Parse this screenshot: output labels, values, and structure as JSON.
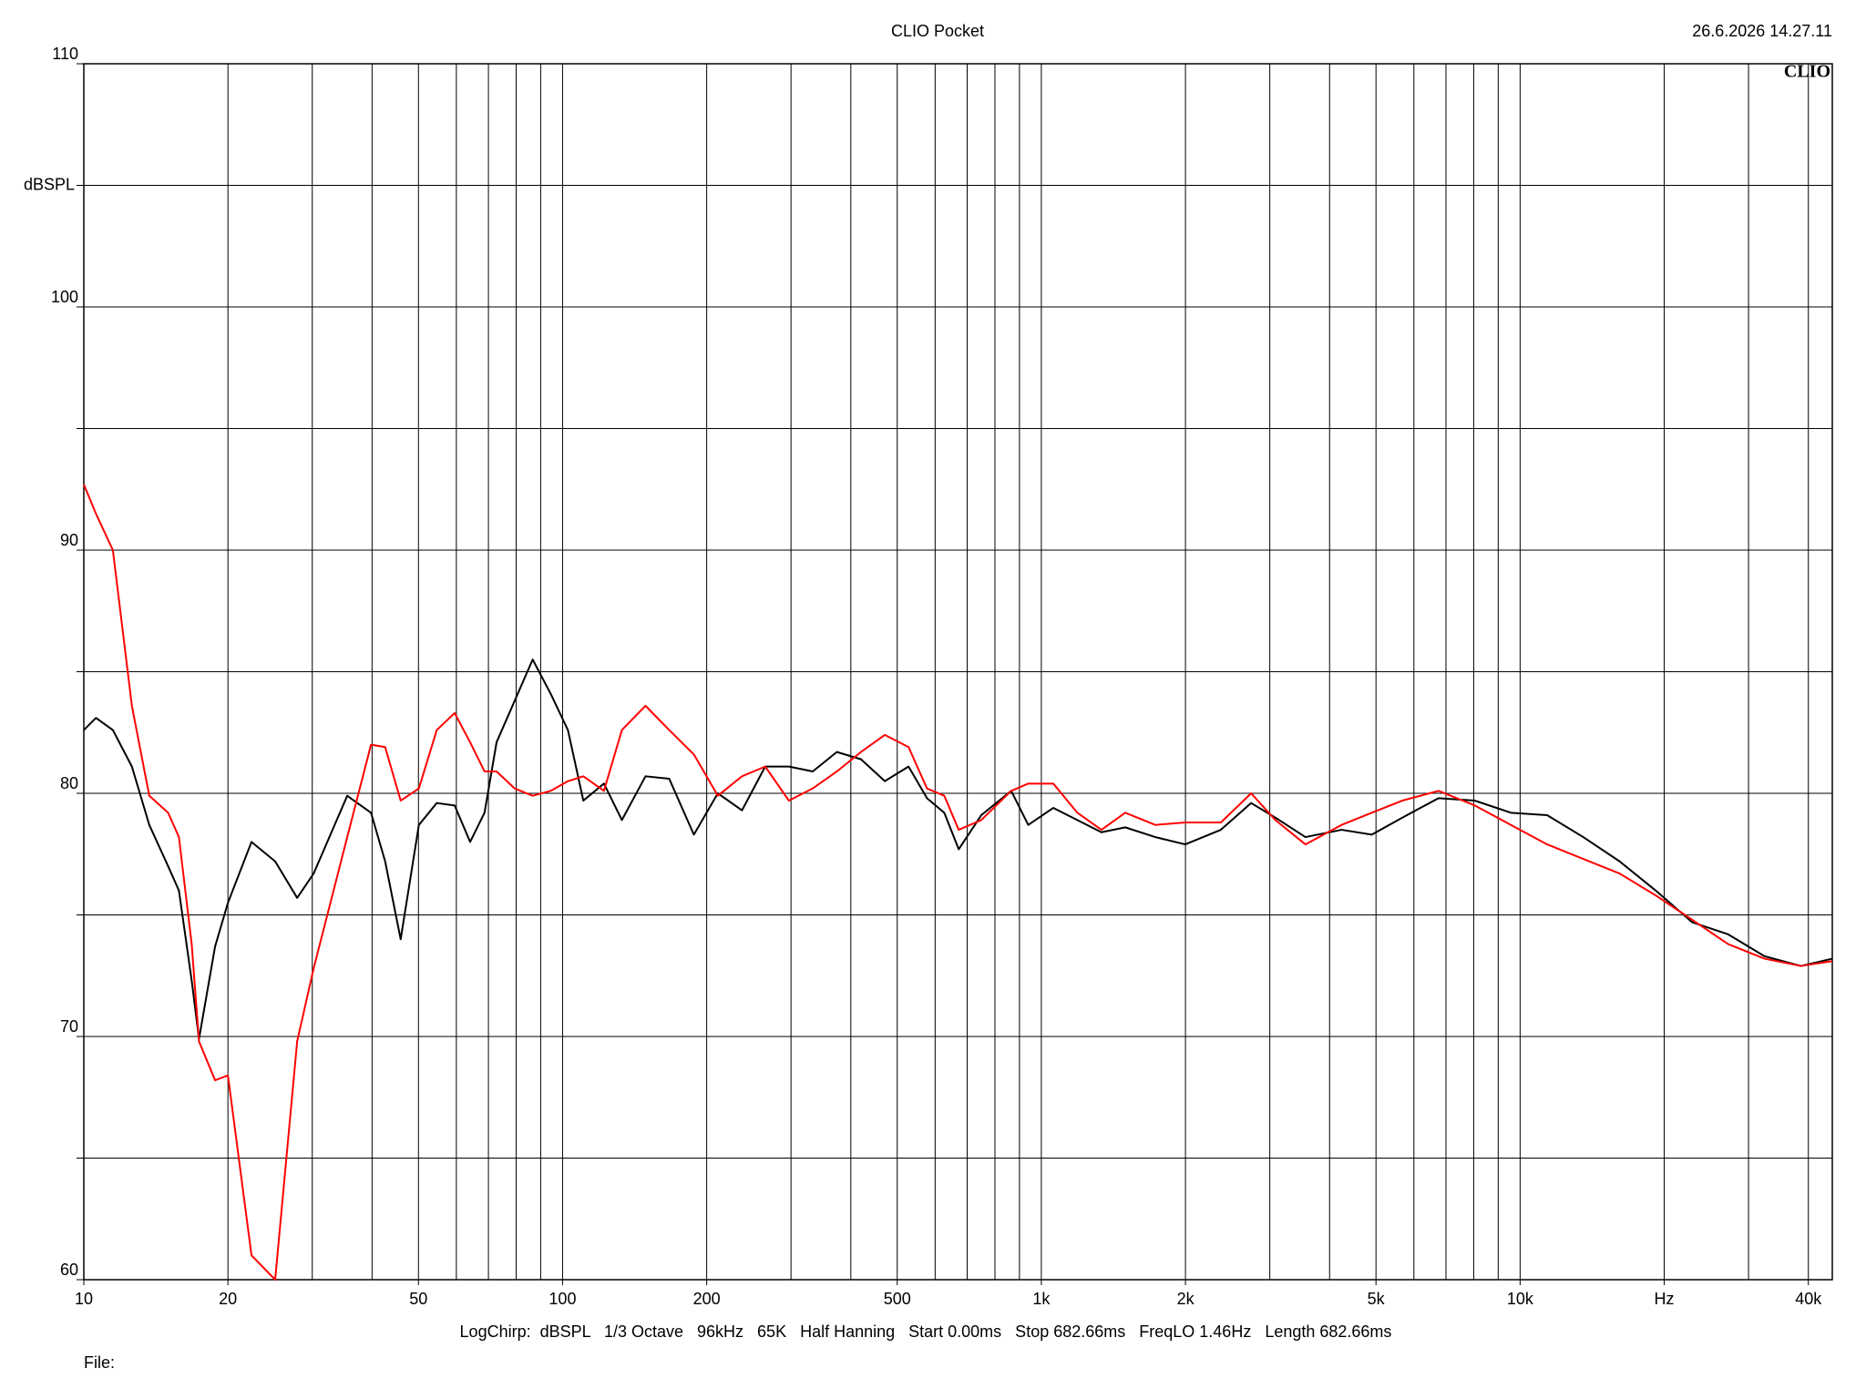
{
  "chart_data": {
    "type": "line",
    "title": "CLIO Pocket",
    "timestamp": "26.6.2026 14.27.11",
    "logo": "CLIO",
    "ylabel": "dBSPL",
    "info": "LogChirp:  dBSPL   1/3 Octave   96kHz   65K   Half Hanning   Start 0.00ms   Stop 682.66ms   FreqLO 1.46Hz   Length 682.66ms",
    "file_label": "File:",
    "log_x": true,
    "grid": true,
    "xlim": [
      10,
      44880
    ],
    "ylim": [
      60,
      110
    ],
    "xticks": [
      10,
      20,
      50,
      100,
      200,
      500,
      {
        "value": 1000,
        "label": "1k"
      },
      {
        "value": 2000,
        "label": "2k"
      },
      {
        "value": 5000,
        "label": "5k"
      },
      {
        "value": 10000,
        "label": "10k"
      },
      {
        "value": 20000,
        "label": "Hz"
      },
      {
        "value": 40000,
        "label": "40k"
      }
    ],
    "xgrid": [
      10,
      20,
      30,
      40,
      50,
      60,
      70,
      80,
      90,
      100,
      200,
      300,
      400,
      500,
      600,
      700,
      800,
      900,
      1000,
      2000,
      3000,
      4000,
      5000,
      6000,
      7000,
      8000,
      9000,
      10000,
      20000,
      30000,
      40000
    ],
    "yticks": [
      60,
      70,
      80,
      90,
      100,
      110
    ],
    "ygrid_minor": [
      65,
      75,
      85,
      95,
      105
    ],
    "x": [
      10,
      10.6,
      11.5,
      12.6,
      13.7,
      15,
      15.8,
      16.8,
      17.4,
      18.8,
      20,
      22.4,
      25.1,
      27.9,
      30.2,
      35.5,
      39.8,
      42.6,
      45.9,
      50.1,
      54.6,
      59.5,
      64.1,
      68.7,
      72.8,
      79.4,
      86.6,
      94.4,
      102.6,
      110.5,
      122,
      133,
      149,
      167,
      188,
      211,
      237,
      265,
      297,
      333,
      374,
      420,
      471,
      528,
      577,
      627,
      672,
      749,
      865,
      939,
      1059,
      1189,
      1335,
      1497,
      1730,
      1998,
      2371,
      2743,
      3082,
      3561,
      4237,
      4900,
      5674,
      6755,
      8040,
      9568,
      11390,
      13550,
      16140,
      19200,
      22870,
      27200,
      32400,
      38580,
      44880
    ],
    "series": [
      {
        "color": "#000000",
        "values": [
          82.6,
          83.1,
          82.6,
          81.1,
          78.7,
          77.0,
          76.0,
          72.3,
          69.9,
          73.7,
          75.5,
          78.0,
          77.2,
          75.7,
          76.7,
          79.9,
          79.2,
          77.2,
          74.0,
          78.7,
          79.6,
          79.5,
          78.0,
          79.2,
          82.1,
          83.8,
          85.5,
          84.1,
          82.6,
          79.7,
          80.4,
          78.9,
          80.7,
          80.6,
          78.3,
          80.0,
          79.3,
          81.1,
          81.1,
          80.9,
          81.7,
          81.4,
          80.5,
          81.1,
          79.8,
          79.2,
          77.7,
          79.1,
          80.1,
          78.7,
          79.4,
          78.9,
          78.4,
          78.6,
          78.2,
          77.9,
          78.5,
          79.6,
          79.0,
          78.2,
          78.5,
          78.3,
          79.0,
          79.8,
          79.7,
          79.2,
          79.1,
          78.2,
          77.2,
          76.0,
          74.7,
          74.2,
          73.3,
          72.9,
          73.2
        ]
      },
      {
        "color": "#ff0000",
        "values": [
          92.7,
          91.5,
          90.0,
          83.6,
          79.9,
          79.2,
          78.2,
          73.8,
          69.8,
          68.2,
          68.4,
          61.0,
          60.0,
          69.8,
          72.8,
          78.2,
          82.0,
          81.9,
          79.7,
          80.2,
          82.6,
          83.3,
          82.1,
          80.9,
          80.9,
          80.2,
          79.9,
          80.1,
          80.5,
          80.7,
          80.1,
          82.6,
          83.6,
          82.6,
          81.6,
          79.9,
          80.7,
          81.1,
          79.7,
          80.2,
          80.9,
          81.7,
          82.4,
          81.9,
          80.2,
          79.9,
          78.5,
          78.9,
          80.1,
          80.4,
          80.4,
          79.2,
          78.5,
          79.2,
          78.7,
          78.8,
          78.8,
          80.0,
          78.9,
          77.9,
          78.7,
          79.2,
          79.7,
          80.1,
          79.5,
          78.7,
          77.9,
          77.3,
          76.7,
          75.8,
          74.8,
          73.8,
          73.2,
          72.9,
          73.1
        ]
      }
    ]
  }
}
